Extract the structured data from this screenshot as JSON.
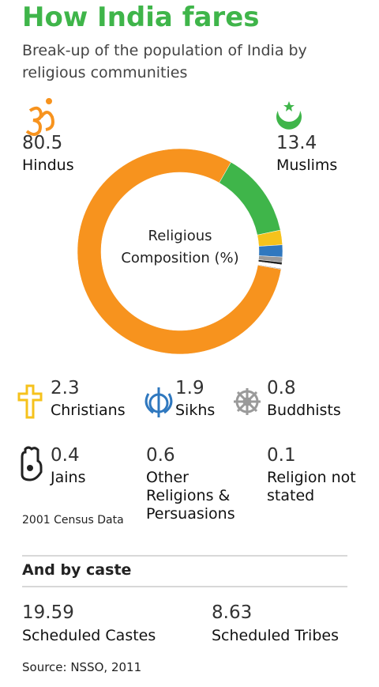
{
  "chart_data": {
    "type": "donut",
    "title": "How India fares",
    "subtitle": "Break-up of the population of India by religious communities",
    "center_label": "Religious Composition (%)",
    "categories": [
      "Hindus",
      "Muslims",
      "Christians",
      "Sikhs",
      "Buddhists",
      "Jains",
      "Other Religions & Persuasions",
      "Religion not stated"
    ],
    "values": [
      80.5,
      13.4,
      2.3,
      1.9,
      0.8,
      0.4,
      0.6,
      0.1
    ],
    "colors": [
      "#f7931e",
      "#3fb54a",
      "#f6c21c",
      "#2f78bf",
      "#9a9a9a",
      "#222222",
      "#ffffff",
      "#555555"
    ],
    "note": "2001 Census Data"
  },
  "caste": {
    "title": "And by caste",
    "items": [
      {
        "value": 19.59,
        "label": "Scheduled Castes"
      },
      {
        "value": 8.63,
        "label": "Scheduled Tribes"
      }
    ]
  },
  "source": "Source: NSSO, 2011"
}
